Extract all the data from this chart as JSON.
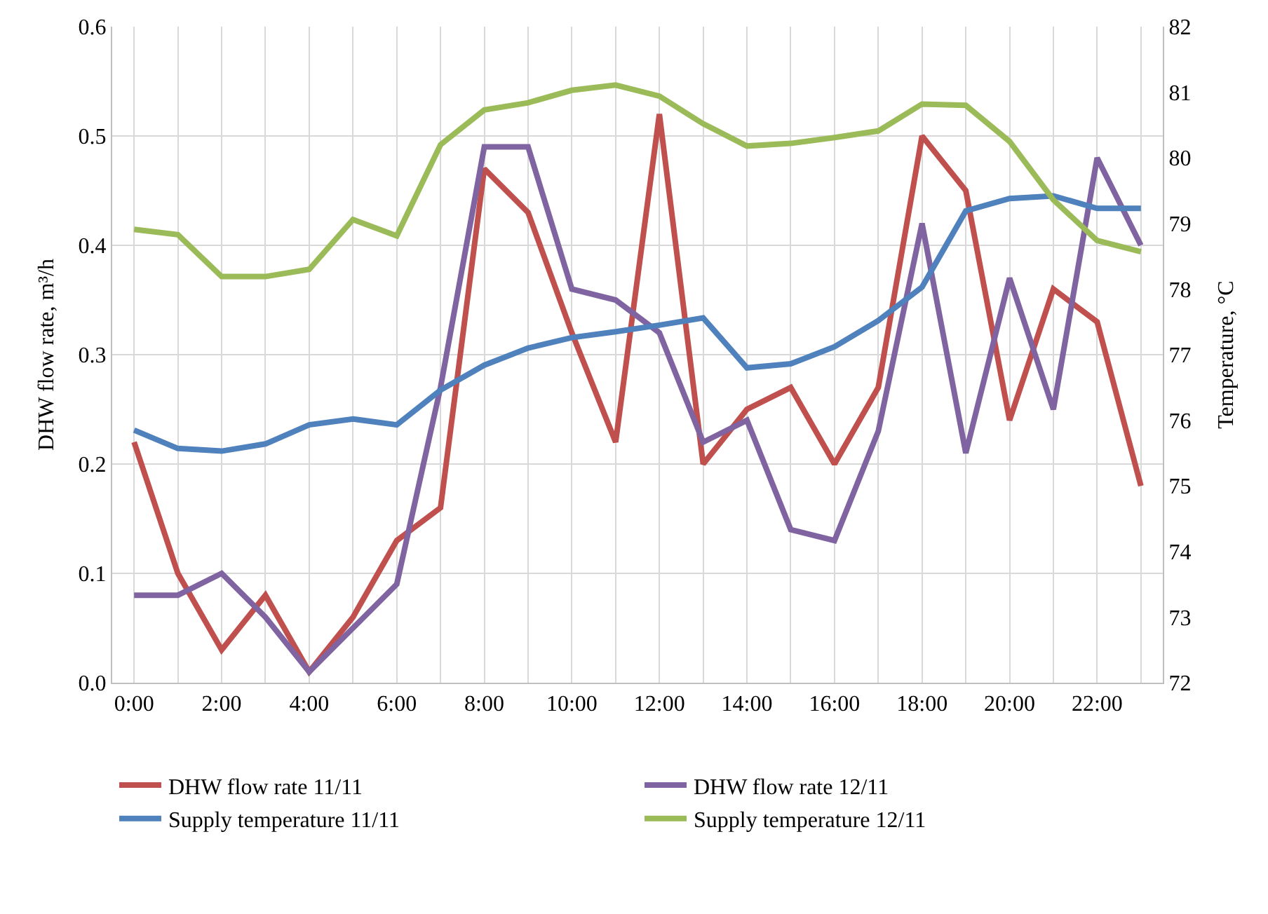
{
  "chart_data": {
    "type": "line",
    "ylabel": "DHW flow rate, m³/h",
    "y2label": "Temperature, °C",
    "categories": [
      "0:00",
      null,
      "2:00",
      null,
      "4:00",
      null,
      "6:00",
      null,
      "8:00",
      null,
      "10:00",
      null,
      "12:00",
      null,
      "14:00",
      null,
      "16:00",
      null,
      "18:00",
      null,
      "20:00",
      null,
      "22:00",
      null
    ],
    "ylim": [
      0,
      0.6
    ],
    "yticks": [
      {
        "value": 0,
        "label": "0.0"
      },
      0.1,
      0.2,
      0.3,
      0.4,
      0.5,
      0.6
    ],
    "y2lim": [
      72,
      82
    ],
    "y2ticks": [
      72,
      73,
      74,
      75,
      76,
      77,
      78,
      79,
      80,
      81,
      82
    ],
    "grid": true,
    "legend": "bottom",
    "marker": "none",
    "line_style": "solid",
    "series": [
      {
        "name": "DHW flow rate 11/11",
        "color": "#c0504d",
        "values": [
          0.22,
          0.1,
          0.03,
          0.08,
          0.01,
          0.06,
          0.13,
          0.16,
          0.47,
          0.43,
          0.32,
          0.22,
          0.52,
          0.2,
          0.25,
          0.27,
          0.2,
          0.27,
          0.5,
          0.45,
          0.24,
          0.36,
          0.33,
          0.18
        ]
      },
      {
        "name": "DHW flow rate 12/11",
        "color": "#8064a2",
        "values": [
          0.08,
          0.08,
          0.1,
          0.06,
          0.01,
          0.05,
          0.09,
          0.27,
          0.49,
          0.49,
          0.36,
          0.35,
          0.32,
          0.22,
          0.24,
          0.14,
          0.13,
          0.23,
          0.42,
          0.21,
          0.37,
          0.25,
          0.48,
          0.4
        ]
      },
      {
        "name": "Supply temperature 11/11",
        "color": "#4f81bd",
        "axis": "y2",
        "values": [
          75.85,
          75.57,
          75.53,
          75.64,
          75.93,
          76.02,
          75.93,
          76.46,
          76.84,
          77.1,
          77.26,
          77.35,
          77.45,
          77.56,
          76.8,
          76.86,
          77.12,
          77.52,
          78.03,
          79.19,
          79.38,
          79.42,
          79.23,
          79.23
        ]
      },
      {
        "name": "Supply temperature 12/11",
        "color": "#9bbb59",
        "axis": "y2",
        "values": [
          78.91,
          78.83,
          78.19,
          78.19,
          78.3,
          79.06,
          78.81,
          80.2,
          80.73,
          80.84,
          81.03,
          81.11,
          80.94,
          80.52,
          80.18,
          80.22,
          80.31,
          80.41,
          80.82,
          80.8,
          80.25,
          79.36,
          78.74,
          78.57
        ]
      }
    ]
  }
}
